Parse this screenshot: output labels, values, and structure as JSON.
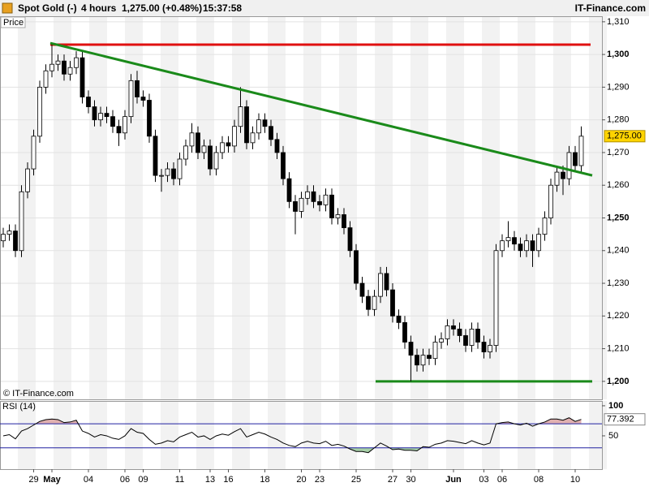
{
  "header": {
    "instrument": "Spot Gold (-)",
    "interval": "4 hours",
    "quote": "1,275.00 (+0.48%)",
    "time": "15:37:58",
    "brand": "IT-Finance.com"
  },
  "chart_data": {
    "type": "candlestick",
    "axis_title": "Price",
    "watermark": "© IT-Finance.com",
    "up_color": "#ffffff",
    "down_color": "#000000",
    "ylim": [
      1194.5,
      1311.7
    ],
    "yticks": [
      {
        "value": 1200,
        "label": "1,200"
      },
      {
        "value": 1210,
        "label": "1,210"
      },
      {
        "value": 1220,
        "label": "1,220"
      },
      {
        "value": 1230,
        "label": "1,230"
      },
      {
        "value": 1240,
        "label": "1,240"
      },
      {
        "value": 1250,
        "label": "1,250"
      },
      {
        "value": 1260,
        "label": "1,260"
      },
      {
        "value": 1270,
        "label": "1,270"
      },
      {
        "value": 1280,
        "label": "1,280"
      },
      {
        "value": 1290,
        "label": "1,290"
      },
      {
        "value": 1300,
        "label": "1,300"
      },
      {
        "value": 1310,
        "label": "1,310"
      }
    ],
    "grid": true,
    "last_price": {
      "value": 1275,
      "label": "1,275.00"
    },
    "resistance": {
      "value": 1303,
      "color": "#e01010"
    },
    "support": {
      "value": 1200,
      "color": "#1a8a1a"
    },
    "trendline": {
      "values": [
        1303.5,
        1263
      ],
      "color": "#1a8a1a"
    },
    "categories": [
      null,
      null,
      null,
      null,
      null,
      "29",
      null,
      null,
      "May",
      null,
      null,
      null,
      null,
      null,
      "04",
      null,
      null,
      null,
      null,
      null,
      "06",
      null,
      null,
      "09",
      null,
      null,
      null,
      null,
      null,
      "11",
      null,
      null,
      null,
      null,
      "13",
      null,
      null,
      "16",
      null,
      null,
      null,
      null,
      null,
      "18",
      null,
      null,
      null,
      null,
      null,
      "20",
      null,
      null,
      "23",
      null,
      null,
      null,
      null,
      null,
      "25",
      null,
      null,
      null,
      null,
      null,
      "27",
      null,
      null,
      "30",
      null,
      null,
      null,
      null,
      null,
      null,
      "Jun",
      null,
      null,
      null,
      null,
      "03",
      null,
      null,
      "06",
      null,
      null,
      null,
      null,
      null,
      "08",
      null,
      null,
      null,
      null,
      null,
      "10",
      null
    ],
    "series": [
      {
        "name": "Spot Gold",
        "open": [
          1243,
          1245,
          1246,
          1240,
          1258,
          1265,
          1275,
          1290,
          1295,
          1297,
          1298,
          1294,
          1296,
          1299,
          1287,
          1284,
          1280,
          1282,
          1281,
          1278,
          1276,
          1281,
          1292,
          1287,
          1286,
          1275,
          1263,
          1263,
          1265,
          1262,
          1268,
          1272,
          1276,
          1270,
          1272,
          1265,
          1270,
          1273,
          1272,
          1278,
          1284,
          1273,
          1276,
          1280,
          1278,
          1274,
          1270,
          1262,
          1255,
          1252,
          1256,
          1258,
          1255,
          1254,
          1257,
          1250,
          1251,
          1247,
          1240,
          1230,
          1226,
          1222,
          1226,
          1233,
          1228,
          1220,
          1218,
          1212,
          1208,
          1205,
          1208,
          1207,
          1212,
          1213,
          1217,
          1216,
          1214,
          1211,
          1216,
          1212,
          1209,
          1211,
          1240,
          1243,
          1244,
          1242,
          1240,
          1243,
          1240,
          1245,
          1250,
          1260,
          1264,
          1262,
          1270,
          1266
        ],
        "high": [
          1247,
          1248,
          1248,
          1260,
          1267,
          1277,
          1292,
          1297,
          1303,
          1300,
          1300,
          1298,
          1301,
          1301,
          1289,
          1286,
          1284,
          1284,
          1283,
          1280,
          1283,
          1294,
          1295,
          1289,
          1288,
          1277,
          1265,
          1267,
          1267,
          1270,
          1274,
          1279,
          1278,
          1274,
          1274,
          1272,
          1275,
          1275,
          1280,
          1290,
          1286,
          1278,
          1282,
          1282,
          1280,
          1276,
          1272,
          1264,
          1257,
          1258,
          1260,
          1260,
          1257,
          1259,
          1259,
          1253,
          1253,
          1249,
          1242,
          1232,
          1228,
          1228,
          1235,
          1235,
          1230,
          1222,
          1220,
          1214,
          1210,
          1210,
          1210,
          1214,
          1215,
          1219,
          1219,
          1218,
          1216,
          1218,
          1218,
          1214,
          1213,
          1242,
          1245,
          1249,
          1246,
          1244,
          1245,
          1245,
          1247,
          1252,
          1262,
          1266,
          1266,
          1272,
          1272,
          1278
        ],
        "low": [
          1241,
          1243,
          1238,
          1238,
          1256,
          1263,
          1273,
          1288,
          1293,
          1295,
          1292,
          1292,
          1294,
          1285,
          1282,
          1278,
          1278,
          1279,
          1276,
          1272,
          1274,
          1279,
          1285,
          1284,
          1273,
          1261,
          1258,
          1261,
          1260,
          1260,
          1266,
          1270,
          1268,
          1268,
          1263,
          1263,
          1268,
          1270,
          1270,
          1276,
          1271,
          1271,
          1274,
          1276,
          1272,
          1268,
          1260,
          1253,
          1245,
          1250,
          1254,
          1253,
          1252,
          1252,
          1248,
          1248,
          1245,
          1238,
          1228,
          1224,
          1220,
          1220,
          1224,
          1226,
          1218,
          1216,
          1210,
          1200,
          1203,
          1203,
          1205,
          1205,
          1210,
          1211,
          1214,
          1212,
          1209,
          1209,
          1210,
          1207,
          1207,
          1209,
          1238,
          1241,
          1240,
          1238,
          1238,
          1235,
          1238,
          1243,
          1248,
          1258,
          1257,
          1260,
          1264,
          1264
        ],
        "close": [
          1245,
          1246,
          1240,
          1258,
          1265,
          1275,
          1290,
          1295,
          1297,
          1298,
          1294,
          1296,
          1299,
          1287,
          1284,
          1280,
          1282,
          1281,
          1278,
          1276,
          1281,
          1292,
          1287,
          1286,
          1275,
          1263,
          1263,
          1265,
          1262,
          1268,
          1272,
          1276,
          1270,
          1272,
          1265,
          1270,
          1273,
          1272,
          1278,
          1284,
          1273,
          1276,
          1280,
          1278,
          1274,
          1270,
          1262,
          1255,
          1252,
          1256,
          1258,
          1255,
          1254,
          1257,
          1250,
          1251,
          1247,
          1240,
          1230,
          1226,
          1222,
          1226,
          1233,
          1228,
          1220,
          1218,
          1212,
          1208,
          1205,
          1208,
          1207,
          1212,
          1213,
          1217,
          1216,
          1214,
          1211,
          1216,
          1212,
          1209,
          1211,
          1240,
          1243,
          1244,
          1242,
          1240,
          1243,
          1240,
          1245,
          1250,
          1260,
          1264,
          1262,
          1270,
          1266,
          1275
        ]
      }
    ],
    "rsi": {
      "name": "RSI (14)",
      "color": "#000000",
      "ylim": [
        -5.4,
        108
      ],
      "yticks": [
        100,
        50
      ],
      "levels": [
        70,
        30
      ],
      "level_color": "#2020a0",
      "over_color": "#e0b0b0",
      "under_color": "#a8d0a8",
      "values": [
        50,
        52,
        45,
        58,
        62,
        68,
        74,
        77,
        78,
        77,
        72,
        73,
        76,
        58,
        54,
        48,
        52,
        50,
        46,
        44,
        50,
        62,
        56,
        54,
        44,
        36,
        38,
        42,
        40,
        48,
        52,
        56,
        48,
        50,
        44,
        50,
        53,
        51,
        57,
        62,
        48,
        52,
        56,
        53,
        48,
        44,
        38,
        34,
        32,
        38,
        41,
        38,
        37,
        41,
        34,
        36,
        33,
        28,
        24,
        24,
        22,
        30,
        38,
        33,
        27,
        28,
        26,
        26,
        25,
        32,
        31,
        36,
        38,
        42,
        41,
        39,
        37,
        42,
        38,
        35,
        38,
        70,
        72,
        73,
        70,
        68,
        71,
        66,
        70,
        73,
        78,
        78,
        76,
        80,
        74,
        77.392
      ]
    }
  }
}
